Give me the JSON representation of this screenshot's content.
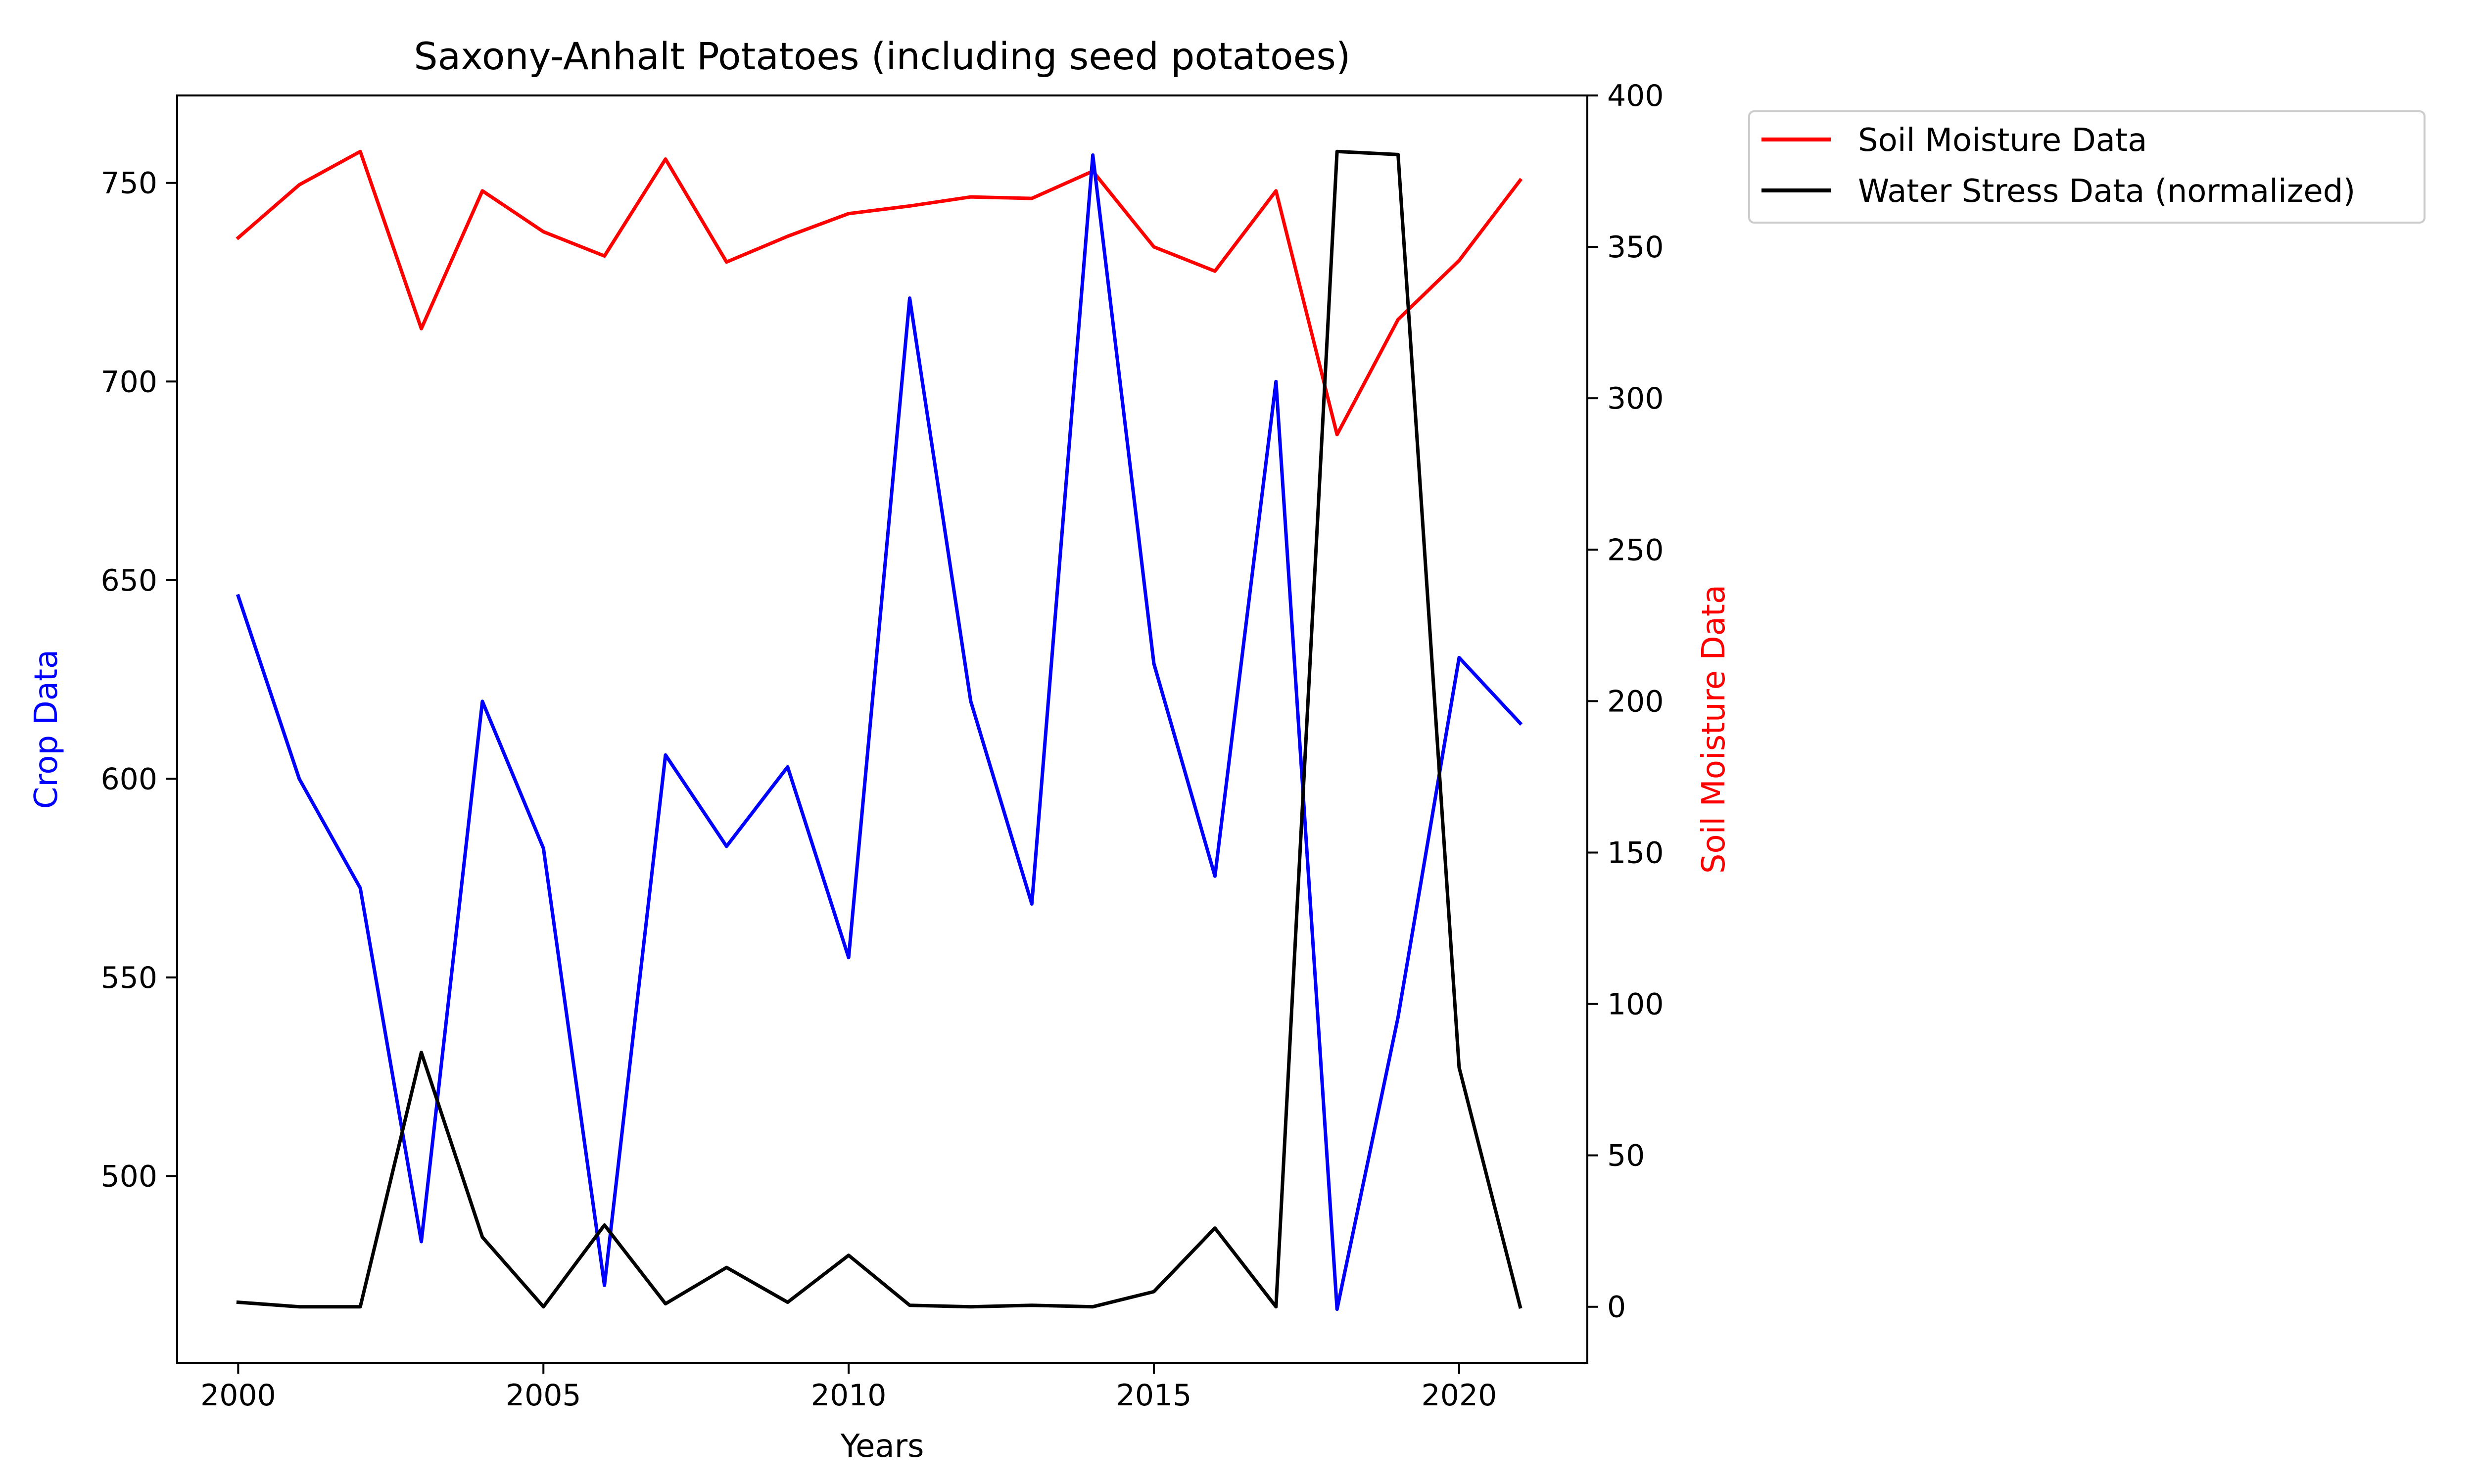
{
  "chart_data": {
    "type": "line",
    "title": "Saxony-Anhalt Potatoes (including seed potatoes)",
    "xlabel": "Years",
    "ylabel_left": "Crop Data",
    "ylabel_right": "Soil Moisture Data",
    "x": [
      2000,
      2001,
      2002,
      2003,
      2004,
      2005,
      2006,
      2007,
      2008,
      2009,
      2010,
      2011,
      2012,
      2013,
      2014,
      2015,
      2016,
      2017,
      2018,
      2019,
      2020,
      2021
    ],
    "x_ticks": [
      2000,
      2005,
      2010,
      2015,
      2020
    ],
    "y_left_ticks": [
      500,
      550,
      600,
      650,
      700,
      750
    ],
    "y_right_ticks": [
      0,
      50,
      100,
      150,
      200,
      250,
      300,
      350,
      400
    ],
    "xlim": [
      1999,
      2022.1
    ],
    "ylim_left": [
      453,
      772
    ],
    "ylim_right": [
      -18.5,
      400
    ],
    "grid": false,
    "legend_position": "outside-top-right",
    "series": [
      {
        "name": "",
        "axis": "left",
        "color": "#0000ff",
        "values": [
          646,
          600,
          572.5,
          483.5,
          619.5,
          582.5,
          472.5,
          606,
          583,
          603,
          555,
          721,
          619.5,
          568.5,
          757,
          629,
          575.5,
          700,
          466.5,
          540,
          630.5,
          614
        ]
      },
      {
        "name": "Soil Moisture Data",
        "axis": "right",
        "color": "#ff0000",
        "values": [
          353,
          370.5,
          381.5,
          323,
          368.5,
          355,
          347,
          379,
          345,
          353.5,
          361,
          363.5,
          366.5,
          366,
          375,
          350,
          342,
          368.5,
          288,
          326,
          345.5,
          372
        ]
      },
      {
        "name": "Water Stress Data (normalized)",
        "axis": "right",
        "color": "#000000",
        "values": [
          1.5,
          0,
          0,
          84,
          23,
          0,
          27,
          1,
          13,
          1.5,
          17,
          0.5,
          0,
          0.5,
          0,
          5,
          26,
          0,
          381.5,
          380.5,
          79,
          0
        ]
      }
    ]
  }
}
